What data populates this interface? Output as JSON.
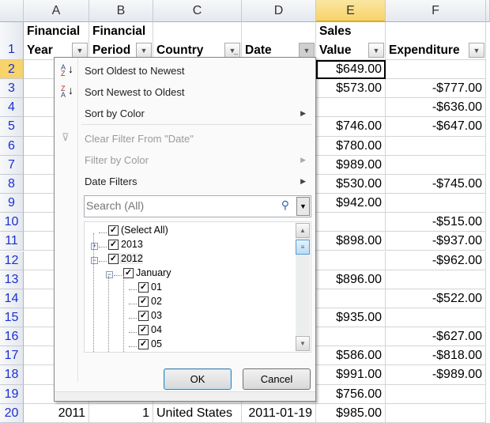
{
  "columns": [
    "A",
    "B",
    "C",
    "D",
    "E",
    "F"
  ],
  "selected_column": "E",
  "headers": {
    "A": [
      "Financial",
      "Year"
    ],
    "B": [
      "Financial",
      "Period"
    ],
    "C": [
      "",
      "Country"
    ],
    "D": [
      "",
      "Date"
    ],
    "E": [
      "Sales",
      "Value"
    ],
    "F": [
      "",
      "Expenditure"
    ]
  },
  "filtered_column": "C",
  "rows": [
    {
      "n": "1"
    },
    {
      "n": "2",
      "E": "$649.00",
      "F": ""
    },
    {
      "n": "3",
      "E": "$573.00",
      "F": "-$777.00"
    },
    {
      "n": "4",
      "E": "",
      "F": "-$636.00"
    },
    {
      "n": "5",
      "E": "$746.00",
      "F": "-$647.00"
    },
    {
      "n": "6",
      "E": "$780.00",
      "F": ""
    },
    {
      "n": "7",
      "E": "$989.00",
      "F": ""
    },
    {
      "n": "8",
      "E": "$530.00",
      "F": "-$745.00"
    },
    {
      "n": "9",
      "E": "$942.00",
      "F": ""
    },
    {
      "n": "10",
      "E": "",
      "F": "-$515.00"
    },
    {
      "n": "11",
      "E": "$898.00",
      "F": "-$937.00"
    },
    {
      "n": "12",
      "E": "",
      "F": "-$962.00"
    },
    {
      "n": "13",
      "E": "$896.00",
      "F": ""
    },
    {
      "n": "14",
      "E": "",
      "F": "-$522.00"
    },
    {
      "n": "15",
      "E": "$935.00",
      "F": ""
    },
    {
      "n": "16",
      "E": "",
      "F": "-$627.00"
    },
    {
      "n": "17",
      "E": "$586.00",
      "F": "-$818.00"
    },
    {
      "n": "18",
      "E": "$991.00",
      "F": "-$989.00"
    },
    {
      "n": "19",
      "E": "$756.00",
      "F": ""
    },
    {
      "n": "20",
      "A": "2011",
      "B": "1",
      "C": "United States",
      "D": "2011-01-19",
      "E": "$985.00",
      "F": ""
    }
  ],
  "menu": {
    "sort_asc": "Sort Oldest to Newest",
    "sort_desc": "Sort Newest to Oldest",
    "sort_color": "Sort by Color",
    "clear_filter": "Clear Filter From \"Date\"",
    "filter_color": "Filter by Color",
    "date_filters": "Date Filters",
    "search_placeholder": "Search (All)",
    "tree": [
      "(Select All)",
      "2013",
      "2012",
      "January",
      "01",
      "02",
      "03",
      "04",
      "05"
    ],
    "ok": "OK",
    "cancel": "Cancel"
  }
}
